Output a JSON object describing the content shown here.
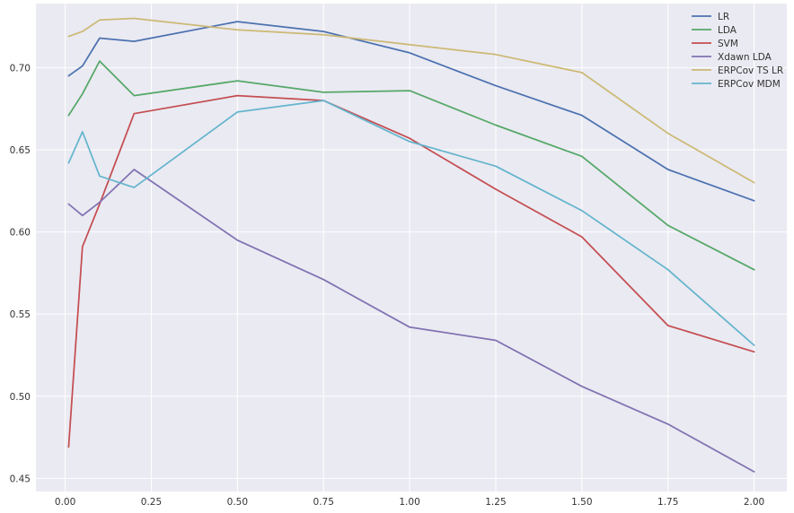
{
  "chart_data": {
    "type": "line",
    "title": "",
    "xlabel": "",
    "ylabel": "",
    "x": [
      0.01,
      0.05,
      0.1,
      0.2,
      0.5,
      0.75,
      1.0,
      1.25,
      1.5,
      1.75,
      2.0
    ],
    "xlim": [
      -0.085,
      2.095
    ],
    "ylim": [
      0.442,
      0.739
    ],
    "xticks": [
      0.0,
      0.25,
      0.5,
      0.75,
      1.0,
      1.25,
      1.5,
      1.75,
      2.0
    ],
    "xtick_labels": [
      "0.00",
      "0.25",
      "0.50",
      "0.75",
      "1.00",
      "1.25",
      "1.50",
      "1.75",
      "2.00"
    ],
    "yticks": [
      0.45,
      0.5,
      0.55,
      0.6,
      0.65,
      0.7
    ],
    "ytick_labels": [
      "0.45",
      "0.50",
      "0.55",
      "0.60",
      "0.65",
      "0.70"
    ],
    "grid": true,
    "legend_position": "top-right",
    "series": [
      {
        "name": "LR",
        "color": "#4c72b0",
        "values": [
          0.695,
          0.701,
          0.718,
          0.716,
          0.728,
          0.722,
          0.709,
          0.689,
          0.671,
          0.638,
          0.619
        ]
      },
      {
        "name": "LDA",
        "color": "#55a868",
        "values": [
          0.671,
          0.684,
          0.704,
          0.683,
          0.692,
          0.685,
          0.686,
          0.665,
          0.646,
          0.604,
          0.577
        ]
      },
      {
        "name": "SVM",
        "color": "#c44e52",
        "values": [
          0.469,
          0.591,
          0.617,
          0.672,
          0.683,
          0.68,
          0.657,
          0.626,
          0.597,
          0.543,
          0.527
        ]
      },
      {
        "name": "Xdawn LDA",
        "color": "#8172b2",
        "values": [
          0.617,
          0.61,
          0.618,
          0.638,
          0.595,
          0.571,
          0.542,
          0.534,
          0.506,
          0.483,
          0.454
        ]
      },
      {
        "name": "ERPCov TS LR",
        "color": "#ccb974",
        "values": [
          0.719,
          0.722,
          0.729,
          0.73,
          0.723,
          0.72,
          0.714,
          0.708,
          0.697,
          0.66,
          0.63
        ]
      },
      {
        "name": "ERPCov MDM",
        "color": "#64b5cd",
        "values": [
          0.642,
          0.661,
          0.634,
          0.627,
          0.673,
          0.68,
          0.655,
          0.64,
          0.613,
          0.577,
          0.531
        ]
      }
    ]
  }
}
